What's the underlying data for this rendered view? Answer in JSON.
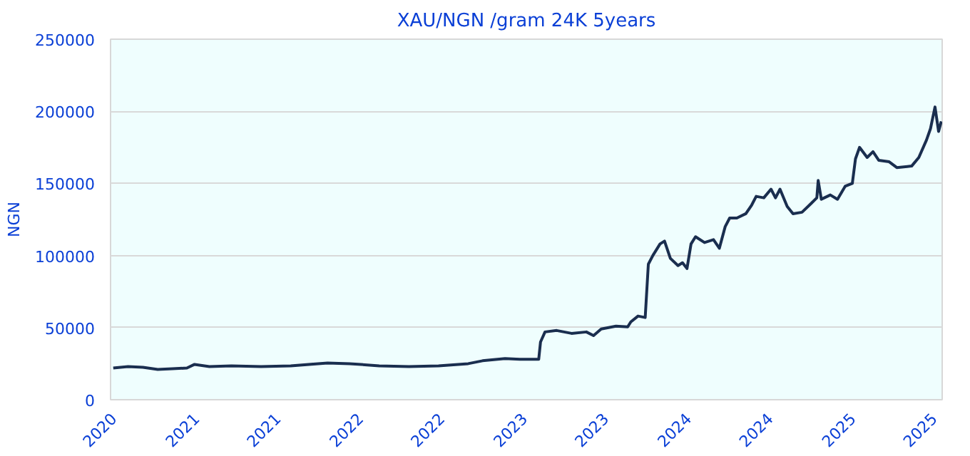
{
  "chart_data": {
    "type": "line",
    "title": "XAU/NGN /gram 24K 5years",
    "ylabel": "NGN",
    "x": [
      "2020-07-01",
      "2020-08-03",
      "2020-09-05",
      "2020-10-08",
      "2020-11-10",
      "2020-12-12",
      "2020-12-29",
      "2021-01-31",
      "2021-03-21",
      "2021-05-26",
      "2021-07-31",
      "2021-10-21",
      "2021-12-09",
      "2022-02-13",
      "2022-04-20",
      "2022-06-25",
      "2022-08-30",
      "2022-10-01",
      "2022-11-20",
      "2022-12-23",
      "2023-02-03",
      "2023-02-07",
      "2023-02-17",
      "2023-03-15",
      "2023-04-17",
      "2023-05-20",
      "2023-06-05",
      "2023-06-22",
      "2023-07-25",
      "2023-08-20",
      "2023-08-27",
      "2023-09-12",
      "2023-09-28",
      "2023-10-05",
      "2023-10-15",
      "2023-10-31",
      "2023-11-10",
      "2023-11-23",
      "2023-12-10",
      "2023-12-20",
      "2023-12-30",
      "2024-01-08",
      "2024-01-18",
      "2024-02-07",
      "2024-02-27",
      "2024-03-11",
      "2024-03-24",
      "2024-04-03",
      "2024-04-19",
      "2024-05-09",
      "2024-05-22",
      "2024-06-01",
      "2024-06-18",
      "2024-07-04",
      "2024-07-14",
      "2024-07-24",
      "2024-08-09",
      "2024-08-22",
      "2024-09-11",
      "2024-10-01",
      "2024-10-14",
      "2024-10-17",
      "2024-10-24",
      "2024-11-13",
      "2024-11-29",
      "2024-12-16",
      "2025-01-01",
      "2025-01-08",
      "2025-01-17",
      "2025-02-03",
      "2025-02-16",
      "2025-03-01",
      "2025-03-24",
      "2025-04-10",
      "2025-05-13",
      "2025-05-29",
      "2025-06-15",
      "2025-06-24",
      "2025-07-04",
      "2025-07-12",
      "2025-07-18"
    ],
    "series": [
      {
        "color": "#1a2e4f",
        "values": [
          22000,
          23000,
          22500,
          21000,
          21500,
          22000,
          24500,
          23000,
          23500,
          23000,
          23500,
          25500,
          25000,
          23500,
          23000,
          23500,
          25000,
          27000,
          28500,
          28000,
          28000,
          40000,
          47000,
          48000,
          46000,
          47000,
          44500,
          49000,
          51000,
          50500,
          54000,
          58000,
          57000,
          94000,
          100000,
          108000,
          110000,
          98000,
          93000,
          95000,
          91000,
          108000,
          113000,
          109000,
          111000,
          105000,
          120000,
          126000,
          126000,
          129000,
          135000,
          141000,
          140000,
          146000,
          140000,
          146000,
          134000,
          129000,
          130000,
          136000,
          140000,
          152000,
          139000,
          142000,
          139000,
          148000,
          150000,
          167000,
          175000,
          168000,
          172000,
          166000,
          165000,
          161000,
          162000,
          168000,
          180000,
          188000,
          203000,
          186000,
          193000
        ]
      }
    ],
    "xlim": [
      "2020-06-25",
      "2025-07-20"
    ],
    "xticks": [
      {
        "value": "2020-07-01",
        "label": "2020"
      },
      {
        "value": "2021-01-01",
        "label": "2021"
      },
      {
        "value": "2021-07-01",
        "label": "2021"
      },
      {
        "value": "2022-01-01",
        "label": "2022"
      },
      {
        "value": "2022-07-01",
        "label": "2022"
      },
      {
        "value": "2023-01-01",
        "label": "2023"
      },
      {
        "value": "2023-07-01",
        "label": "2023"
      },
      {
        "value": "2024-01-01",
        "label": "2024"
      },
      {
        "value": "2024-07-01",
        "label": "2024"
      },
      {
        "value": "2025-01-01",
        "label": "2025"
      },
      {
        "value": "2025-07-01",
        "label": "2025"
      }
    ],
    "ylim": [
      0,
      250000
    ],
    "yticks": [
      0,
      50000,
      100000,
      150000,
      200000,
      250000
    ],
    "grid": "y",
    "marker": "none",
    "line_style": "solid"
  }
}
